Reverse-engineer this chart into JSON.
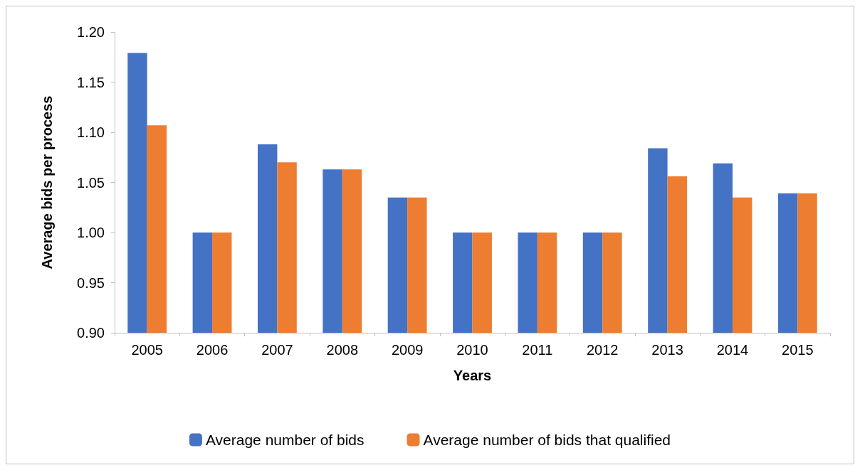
{
  "chart_data": {
    "type": "bar",
    "xlabel": "Years",
    "ylabel": "Average bids per process",
    "categories": [
      "2005",
      "2006",
      "2007",
      "2008",
      "2009",
      "2010",
      "2011",
      "2012",
      "2013",
      "2014",
      "2015"
    ],
    "series": [
      {
        "name": "Average number of bids",
        "color": "#4472c4",
        "values": [
          1.179,
          1.0,
          1.088,
          1.063,
          1.035,
          1.0,
          1.0,
          1.0,
          1.084,
          1.069,
          1.039
        ]
      },
      {
        "name": "Average number of bids that qualified",
        "color": "#ed7d31",
        "values": [
          1.107,
          1.0,
          1.07,
          1.063,
          1.035,
          1.0,
          1.0,
          1.0,
          1.056,
          1.035,
          1.039
        ]
      }
    ],
    "ylim": [
      0.9,
      1.2
    ],
    "yticks": [
      {
        "value": 0.9,
        "label": "0.90"
      },
      {
        "value": 0.95,
        "label": "0.95"
      },
      {
        "value": 1.0,
        "label": "1.00"
      },
      {
        "value": 1.05,
        "label": "1.05"
      },
      {
        "value": 1.1,
        "label": "1.10"
      },
      {
        "value": 1.15,
        "label": "1.15"
      },
      {
        "value": 1.2,
        "label": "1.20"
      }
    ],
    "grid": false,
    "legend": "bottom"
  }
}
